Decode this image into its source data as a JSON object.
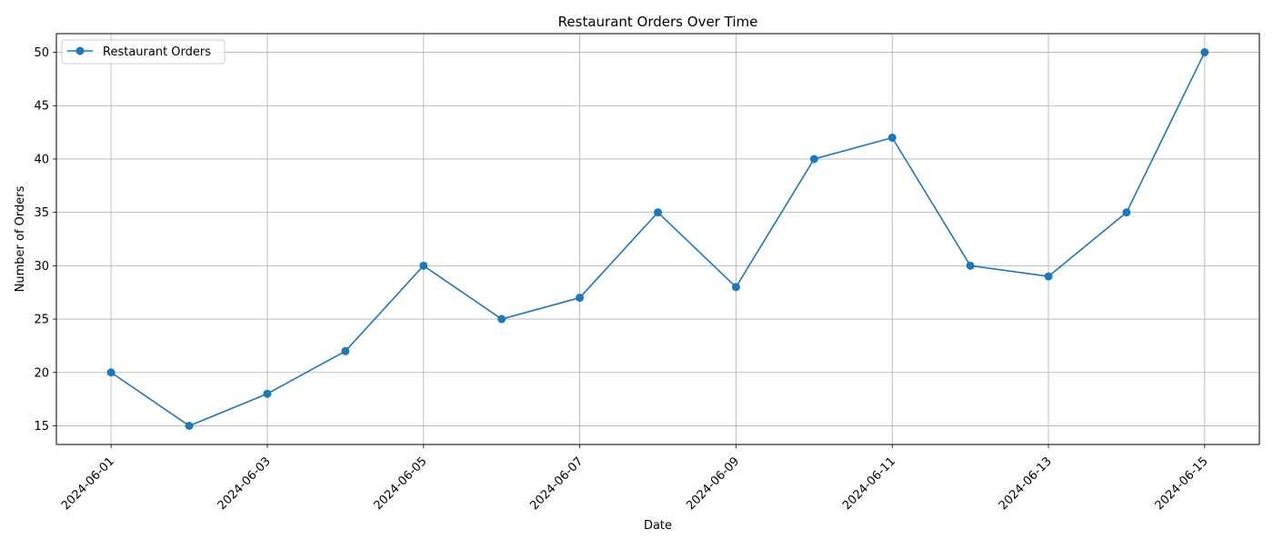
{
  "chart_data": {
    "type": "line",
    "title": "Restaurant Orders Over Time",
    "xlabel": "Date",
    "ylabel": "Number of Orders",
    "x": [
      "2024-06-01",
      "2024-06-02",
      "2024-06-03",
      "2024-06-04",
      "2024-06-05",
      "2024-06-06",
      "2024-06-07",
      "2024-06-08",
      "2024-06-09",
      "2024-06-10",
      "2024-06-11",
      "2024-06-12",
      "2024-06-13",
      "2024-06-14",
      "2024-06-15"
    ],
    "series": [
      {
        "name": "Restaurant Orders",
        "values": [
          20,
          15,
          18,
          22,
          30,
          25,
          27,
          35,
          28,
          40,
          42,
          30,
          29,
          35,
          50
        ],
        "color": "#1f77b4",
        "marker": "circle"
      }
    ],
    "x_ticks": [
      "2024-06-01",
      "2024-06-03",
      "2024-06-05",
      "2024-06-07",
      "2024-06-09",
      "2024-06-11",
      "2024-06-13",
      "2024-06-15"
    ],
    "y_ticks": [
      "15",
      "20",
      "25",
      "30",
      "35",
      "40",
      "45",
      "50"
    ],
    "ylim": [
      13.25,
      51.75
    ],
    "xlim": [
      "2024-05-31",
      "2024-06-15"
    ],
    "grid": true,
    "legend_position": "top-left"
  }
}
